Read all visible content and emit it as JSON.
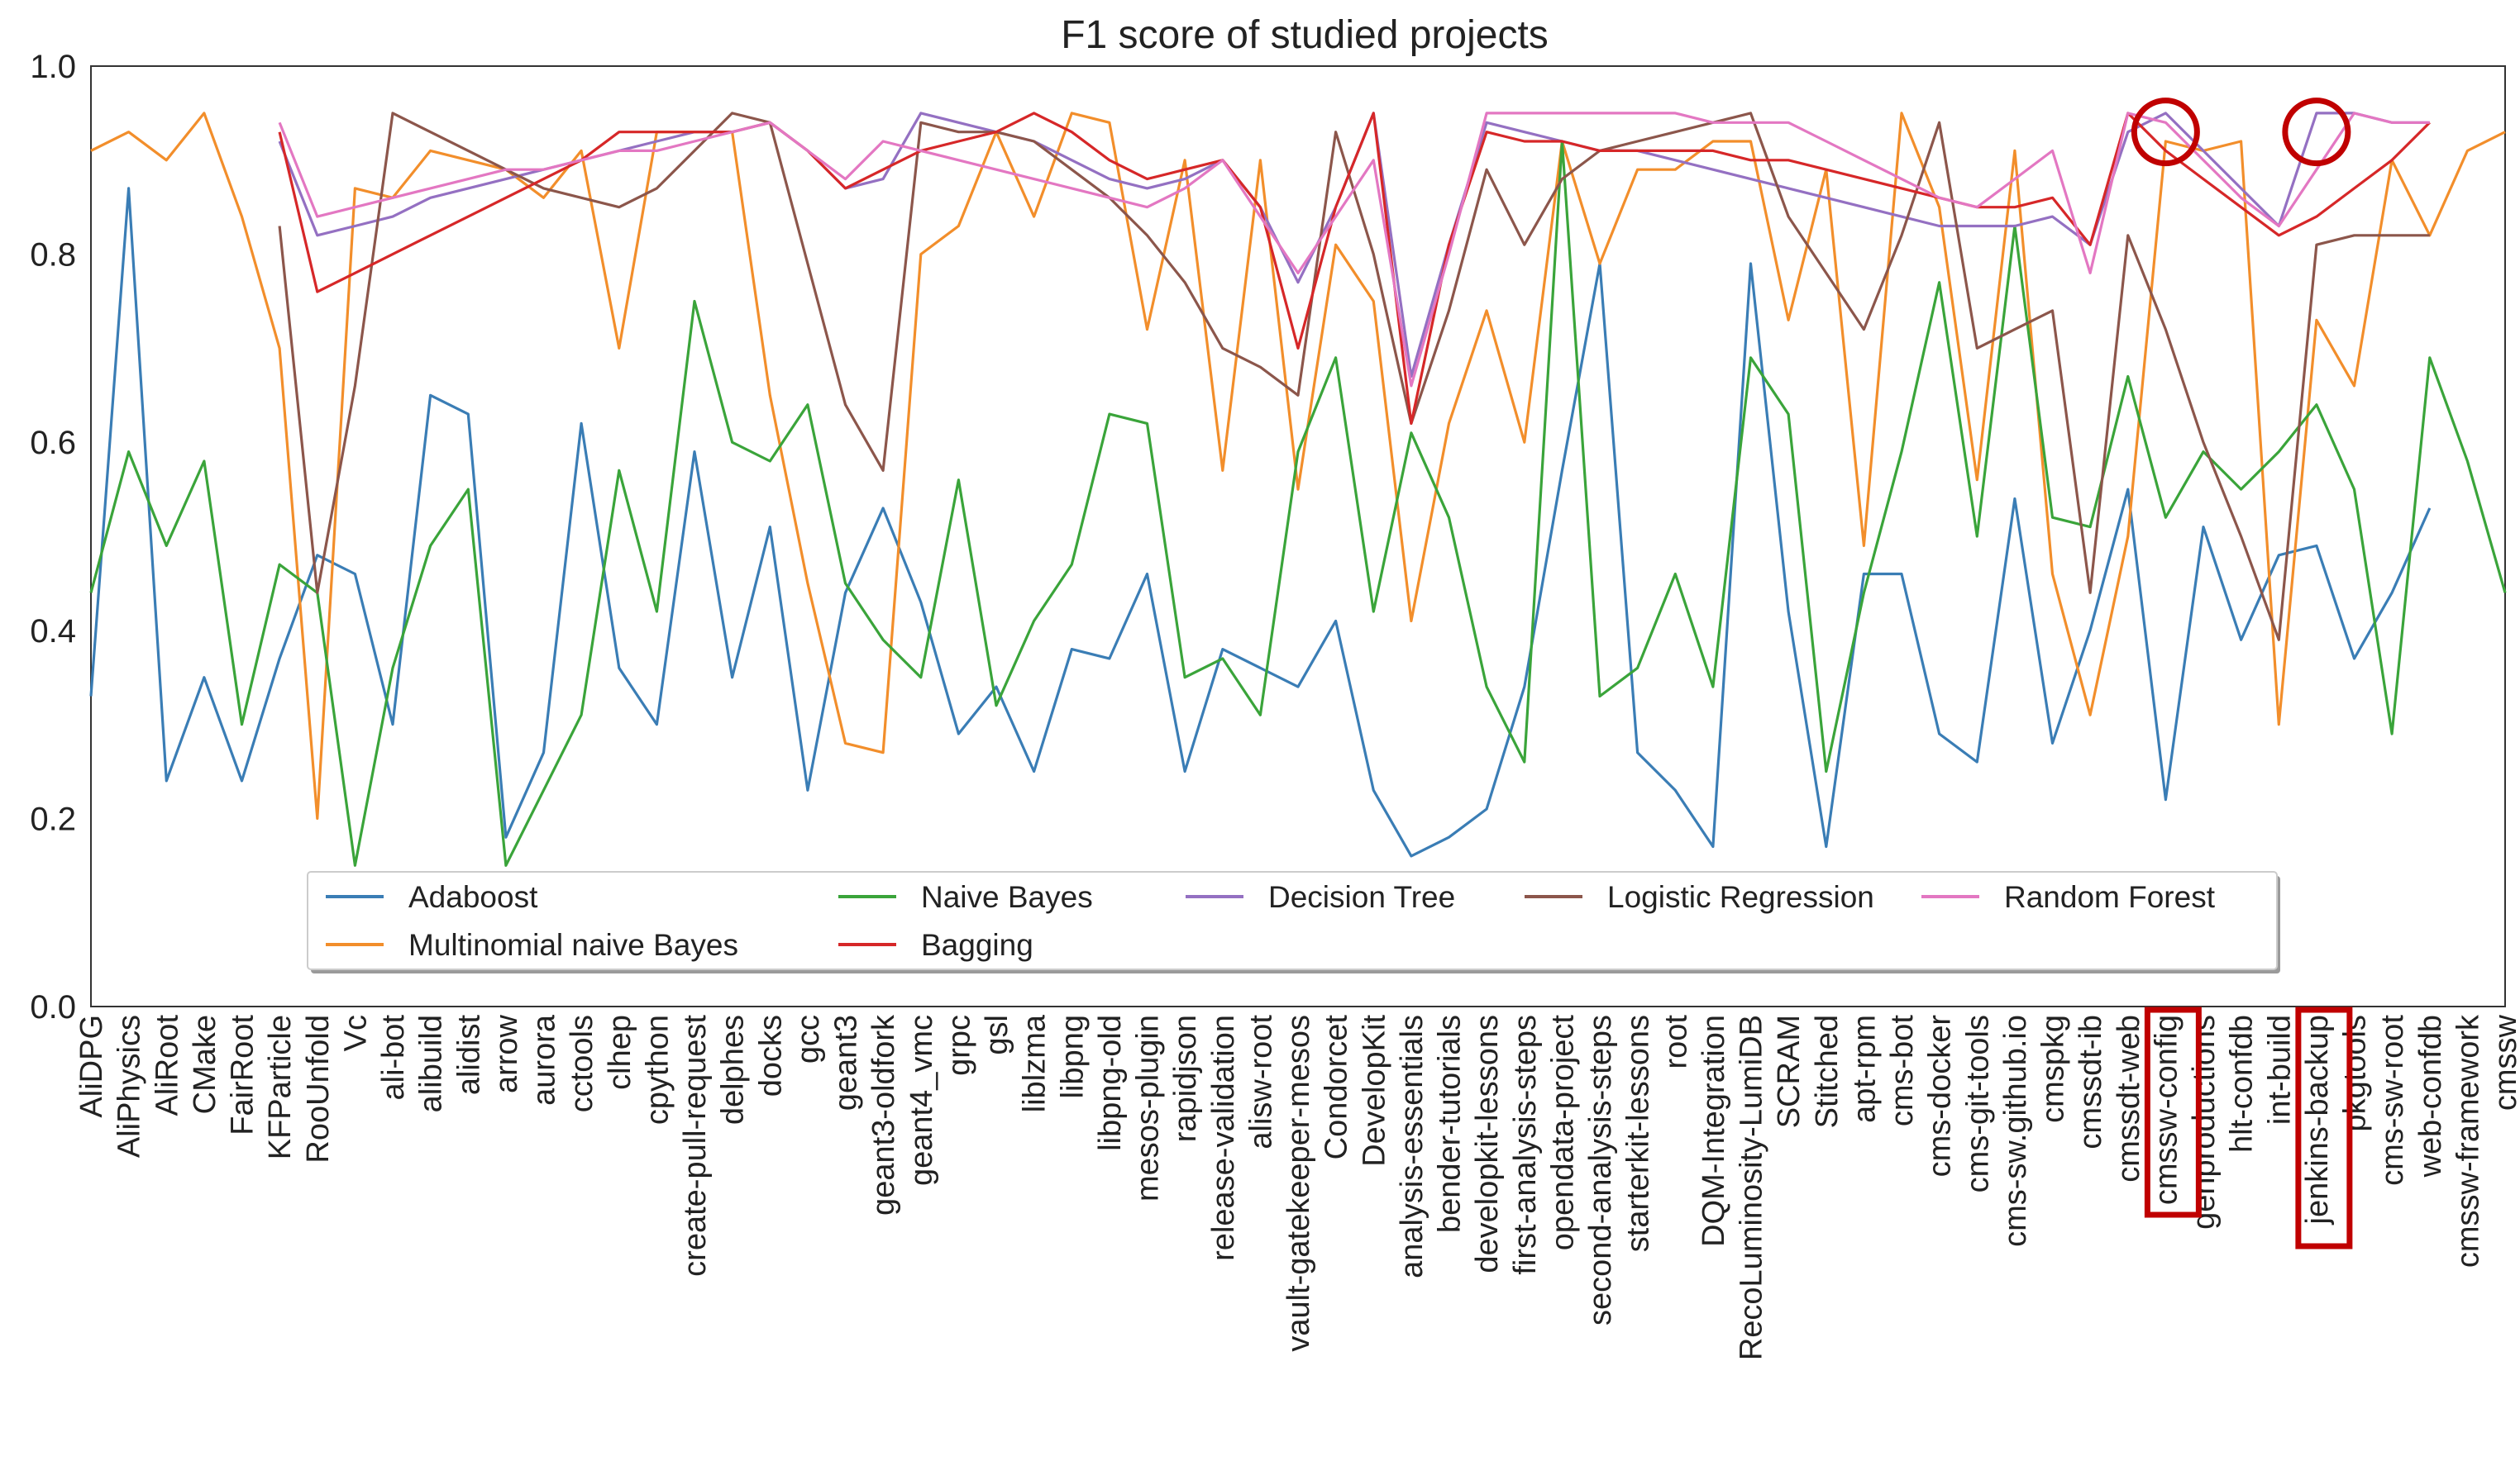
{
  "chart_data": {
    "type": "line",
    "title": "F1 score of studied projects",
    "xlabel": "",
    "ylabel": "",
    "ylim": [
      0.0,
      1.0
    ],
    "yticks": [
      "0.0",
      "0.2",
      "0.4",
      "0.6",
      "0.8",
      "1.0"
    ],
    "grid": false,
    "legend_position": "lower-center",
    "categories": [
      "AliDPG",
      "AliPhysics",
      "AliRoot",
      "CMake",
      "FairRoot",
      "KFParticle",
      "RooUnfold",
      "Vc",
      "ali-bot",
      "alibuild",
      "alidist",
      "arrow",
      "aurora",
      "cctools",
      "clhep",
      "cpython",
      "create-pull-request",
      "delphes",
      "docks",
      "gcc",
      "geant3",
      "geant3-oldfork",
      "geant4_vmc",
      "grpc",
      "gsl",
      "liblzma",
      "libpng",
      "libpng-old",
      "mesos-plugin",
      "rapidjson",
      "release-validation",
      "alisw-root",
      "vault-gatekeeper-mesos",
      "Condorcet",
      "DevelopKit",
      "analysis-essentials",
      "bender-tutorials",
      "developkit-lessons",
      "first-analysis-steps",
      "opendata-project",
      "second-analysis-steps",
      "starterkit-lessons",
      "root",
      "DQM-Integration",
      "RecoLuminosity-LumiDB",
      "SCRAM",
      "Stitched",
      "apt-rpm",
      "cms-bot",
      "cms-docker",
      "cms-git-tools",
      "cms-sw.github.io",
      "cmspkg",
      "cmssdt-ib",
      "cmssdt-web",
      "cmssw-config",
      "genproductions",
      "hlt-confdb",
      "int-build",
      "jenkins-backup",
      "pkgtools",
      "cms-sw-root",
      "web-confdb",
      "cmssw-framework",
      "cmssw"
    ],
    "highlighted_categories": [
      "cmssw-config",
      "jenkins-backup"
    ],
    "series": [
      {
        "name": "Adaboost",
        "color": "#3a7db5",
        "values": [
          0.33,
          0.87,
          0.24,
          0.35,
          0.24,
          0.37,
          0.48,
          0.46,
          0.3,
          0.65,
          0.63,
          0.18,
          0.27,
          0.62,
          0.36,
          0.3,
          0.59,
          0.35,
          0.51,
          0.23,
          0.44,
          0.53,
          0.43,
          0.29,
          0.34,
          0.25,
          0.38,
          0.37,
          0.46,
          0.25,
          0.38,
          0.36,
          0.34,
          0.41,
          0.23,
          0.16,
          0.18,
          0.21,
          0.34,
          0.57,
          0.79,
          0.27,
          0.23,
          0.17,
          0.79,
          0.42,
          0.17,
          0.46,
          0.46,
          0.29,
          0.26,
          0.54,
          0.28,
          0.4,
          0.55,
          0.22,
          0.51,
          0.39,
          0.48,
          0.49,
          0.37,
          0.44,
          0.53,
          null,
          null
        ]
      },
      {
        "name": "Multinomial naive Bayes",
        "color": "#f28e2b",
        "values": [
          0.91,
          0.93,
          0.9,
          0.95,
          0.84,
          0.7,
          0.2,
          0.87,
          0.86,
          0.91,
          0.9,
          0.89,
          0.86,
          0.91,
          0.7,
          0.93,
          0.93,
          0.93,
          0.65,
          0.45,
          0.28,
          0.27,
          0.8,
          0.83,
          0.93,
          0.84,
          0.95,
          0.94,
          0.72,
          0.9,
          0.57,
          0.9,
          0.55,
          0.81,
          0.75,
          0.41,
          0.62,
          0.74,
          0.6,
          0.92,
          0.79,
          0.89,
          0.89,
          0.92,
          0.92,
          0.73,
          0.89,
          0.49,
          0.95,
          0.85,
          0.56,
          0.91,
          0.46,
          0.31,
          0.5,
          0.92,
          0.91,
          0.92,
          0.3,
          0.73,
          0.66,
          0.9,
          0.82,
          0.91,
          0.93
        ]
      },
      {
        "name": "Naive Bayes",
        "color": "#3aa43a",
        "values": [
          0.44,
          0.59,
          0.49,
          0.58,
          0.3,
          0.47,
          0.44,
          0.15,
          0.36,
          0.49,
          0.55,
          0.15,
          0.23,
          0.31,
          0.57,
          0.42,
          0.75,
          0.6,
          0.58,
          0.64,
          0.45,
          0.39,
          0.35,
          0.56,
          0.32,
          0.41,
          0.47,
          0.63,
          0.62,
          0.35,
          0.37,
          0.31,
          0.59,
          0.69,
          0.42,
          0.61,
          0.52,
          0.34,
          0.26,
          0.92,
          0.33,
          0.36,
          0.46,
          0.34,
          0.69,
          0.63,
          0.25,
          0.44,
          0.59,
          0.77,
          0.5,
          0.83,
          0.52,
          0.51,
          0.67,
          0.52,
          0.59,
          0.55,
          0.59,
          0.64,
          0.55,
          0.29,
          0.69,
          0.58,
          0.44
        ]
      },
      {
        "name": "Decision Tree",
        "color": "#9470c2",
        "values": [
          null,
          null,
          null,
          null,
          null,
          0.92,
          0.82,
          0.83,
          0.84,
          0.86,
          0.87,
          0.88,
          0.89,
          0.9,
          0.91,
          0.92,
          0.93,
          0.93,
          0.94,
          0.91,
          0.87,
          0.88,
          0.95,
          0.94,
          0.93,
          0.92,
          0.9,
          0.88,
          0.87,
          0.88,
          0.9,
          0.85,
          0.77,
          0.85,
          0.95,
          0.67,
          0.81,
          0.94,
          0.93,
          0.92,
          0.91,
          0.91,
          0.9,
          0.89,
          0.88,
          0.87,
          0.86,
          0.85,
          0.84,
          0.83,
          0.83,
          0.83,
          0.84,
          0.81,
          0.93,
          0.95,
          0.91,
          0.87,
          0.83,
          0.95,
          0.95,
          0.94,
          0.94,
          null,
          null
        ]
      },
      {
        "name": "Logistic Regression",
        "color": "#8c564b",
        "values": [
          null,
          null,
          null,
          null,
          null,
          0.83,
          0.44,
          0.66,
          0.95,
          0.93,
          0.91,
          0.89,
          0.87,
          0.86,
          0.85,
          0.87,
          0.91,
          0.95,
          0.94,
          0.79,
          0.64,
          0.57,
          0.94,
          0.93,
          0.93,
          0.92,
          0.89,
          0.86,
          0.82,
          0.77,
          0.7,
          0.68,
          0.65,
          0.93,
          0.8,
          0.62,
          0.74,
          0.89,
          0.81,
          0.88,
          0.91,
          0.92,
          0.93,
          0.94,
          0.95,
          0.84,
          0.78,
          0.72,
          0.82,
          0.94,
          0.7,
          0.72,
          0.74,
          0.44,
          0.82,
          0.72,
          0.6,
          0.5,
          0.39,
          0.81,
          0.82,
          0.82,
          0.82,
          null,
          null
        ]
      },
      {
        "name": "Bagging",
        "color": "#d62728",
        "values": [
          null,
          null,
          null,
          null,
          null,
          0.93,
          0.76,
          0.78,
          0.8,
          0.82,
          0.84,
          0.86,
          0.88,
          0.9,
          0.93,
          0.93,
          0.93,
          0.93,
          0.94,
          0.91,
          0.87,
          0.89,
          0.91,
          0.92,
          0.93,
          0.95,
          0.93,
          0.9,
          0.88,
          0.89,
          0.9,
          0.85,
          0.7,
          0.85,
          0.95,
          0.62,
          0.81,
          0.93,
          0.92,
          0.92,
          0.91,
          0.91,
          0.91,
          0.91,
          0.9,
          0.9,
          0.89,
          0.88,
          0.87,
          0.86,
          0.85,
          0.85,
          0.86,
          0.81,
          0.95,
          0.91,
          0.88,
          0.85,
          0.82,
          0.84,
          0.87,
          0.9,
          0.94,
          null,
          null
        ]
      },
      {
        "name": "Random Forest",
        "color": "#e377c2",
        "values": [
          null,
          null,
          null,
          null,
          null,
          0.94,
          0.84,
          0.85,
          0.86,
          0.87,
          0.88,
          0.89,
          0.89,
          0.9,
          0.91,
          0.91,
          0.92,
          0.93,
          0.94,
          0.91,
          0.88,
          0.92,
          0.91,
          0.9,
          0.89,
          0.88,
          0.87,
          0.86,
          0.85,
          0.87,
          0.9,
          0.84,
          0.78,
          0.84,
          0.9,
          0.66,
          0.8,
          0.95,
          0.95,
          0.95,
          0.95,
          0.95,
          0.95,
          0.94,
          0.94,
          0.94,
          0.92,
          0.9,
          0.88,
          0.86,
          0.85,
          0.88,
          0.91,
          0.78,
          0.95,
          0.94,
          0.9,
          0.86,
          0.83,
          0.89,
          0.95,
          0.94,
          0.94,
          null,
          null
        ]
      }
    ]
  }
}
